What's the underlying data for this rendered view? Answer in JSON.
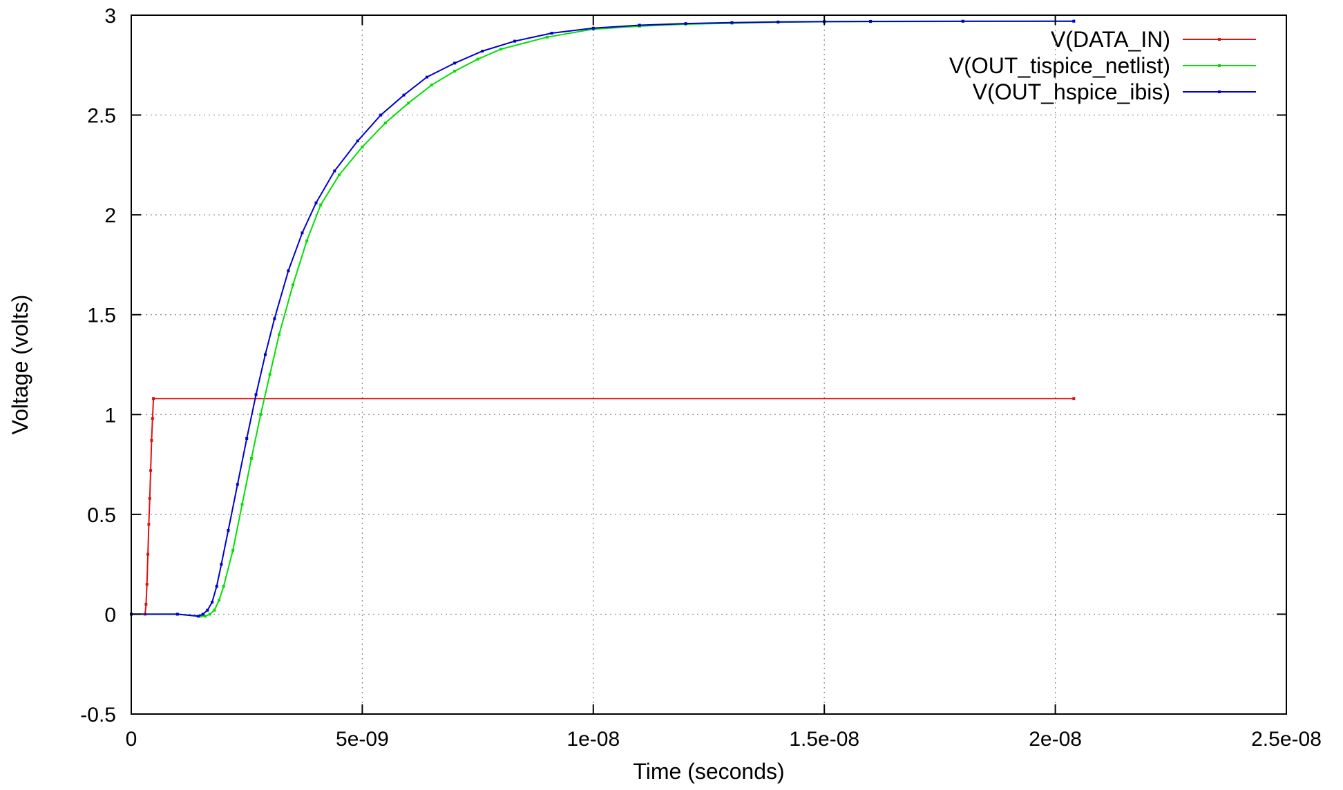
{
  "chart_data": {
    "type": "line",
    "title": "",
    "xlabel": "Time (seconds)",
    "ylabel": "Voltage (volts)",
    "xlim": [
      0,
      2.5e-08
    ],
    "ylim": [
      -0.5,
      3
    ],
    "xticks": [
      0,
      5e-09,
      1e-08,
      1.5e-08,
      2e-08,
      2.5e-08
    ],
    "xtick_labels": [
      "0",
      "5e-09",
      "1e-08",
      "1.5e-08",
      "2e-08",
      "2.5e-08"
    ],
    "yticks": [
      -0.5,
      0,
      0.5,
      1,
      1.5,
      2,
      2.5,
      3
    ],
    "ytick_labels": [
      "-0.5",
      "0",
      "0.5",
      "1",
      "1.5",
      "2",
      "2.5",
      "3"
    ],
    "grid": true,
    "legend_position": "top-right",
    "series": [
      {
        "name": "V(DATA_IN)",
        "color": "#e01010",
        "x": [
          0,
          3e-10,
          3.2e-10,
          3.4e-10,
          3.6e-10,
          3.8e-10,
          4e-10,
          4.2e-10,
          4.4e-10,
          4.6e-10,
          4.8e-10,
          2.04e-08
        ],
        "y": [
          0,
          0,
          0.05,
          0.15,
          0.3,
          0.45,
          0.58,
          0.72,
          0.87,
          0.98,
          1.08,
          1.08
        ]
      },
      {
        "name": "V(OUT_tispice_netlist)",
        "color": "#00e000",
        "x": [
          0,
          1e-09,
          1.5e-09,
          1.6e-09,
          1.7e-09,
          1.8e-09,
          1.9e-09,
          2e-09,
          2.2e-09,
          2.4e-09,
          2.6e-09,
          2.8e-09,
          3e-09,
          3.2e-09,
          3.5e-09,
          3.8e-09,
          4.1e-09,
          4.5e-09,
          5e-09,
          5.5e-09,
          6e-09,
          6.5e-09,
          7e-09,
          7.5e-09,
          8e-09,
          9e-09,
          1e-08,
          1.1e-08,
          1.2e-08,
          1.3e-08,
          1.4e-08,
          1.5e-08,
          1.6e-08,
          1.8e-08,
          2.04e-08
        ],
        "y": [
          0,
          0,
          -0.01,
          -0.01,
          0.0,
          0.02,
          0.07,
          0.14,
          0.32,
          0.55,
          0.78,
          1.0,
          1.2,
          1.4,
          1.65,
          1.87,
          2.05,
          2.2,
          2.34,
          2.46,
          2.56,
          2.65,
          2.72,
          2.78,
          2.83,
          2.89,
          2.93,
          2.945,
          2.955,
          2.96,
          2.965,
          2.967,
          2.968,
          2.969,
          2.97
        ]
      },
      {
        "name": "V(OUT_hspice_ibis)",
        "color": "#0000d0",
        "x": [
          0,
          1e-09,
          1.45e-09,
          1.55e-09,
          1.65e-09,
          1.75e-09,
          1.85e-09,
          1.95e-09,
          2.1e-09,
          2.3e-09,
          2.5e-09,
          2.7e-09,
          2.9e-09,
          3.1e-09,
          3.4e-09,
          3.7e-09,
          4e-09,
          4.4e-09,
          4.9e-09,
          5.4e-09,
          5.9e-09,
          6.4e-09,
          7e-09,
          7.6e-09,
          8.3e-09,
          9.1e-09,
          1e-08,
          1.1e-08,
          1.2e-08,
          1.3e-08,
          1.4e-08,
          1.5e-08,
          1.6e-08,
          1.8e-08,
          2.04e-08
        ],
        "y": [
          0,
          0,
          -0.01,
          0.0,
          0.02,
          0.06,
          0.14,
          0.25,
          0.42,
          0.65,
          0.88,
          1.1,
          1.3,
          1.48,
          1.72,
          1.91,
          2.06,
          2.22,
          2.37,
          2.5,
          2.6,
          2.69,
          2.76,
          2.82,
          2.87,
          2.91,
          2.935,
          2.95,
          2.958,
          2.963,
          2.966,
          2.968,
          2.969,
          2.97,
          2.97
        ]
      }
    ]
  }
}
